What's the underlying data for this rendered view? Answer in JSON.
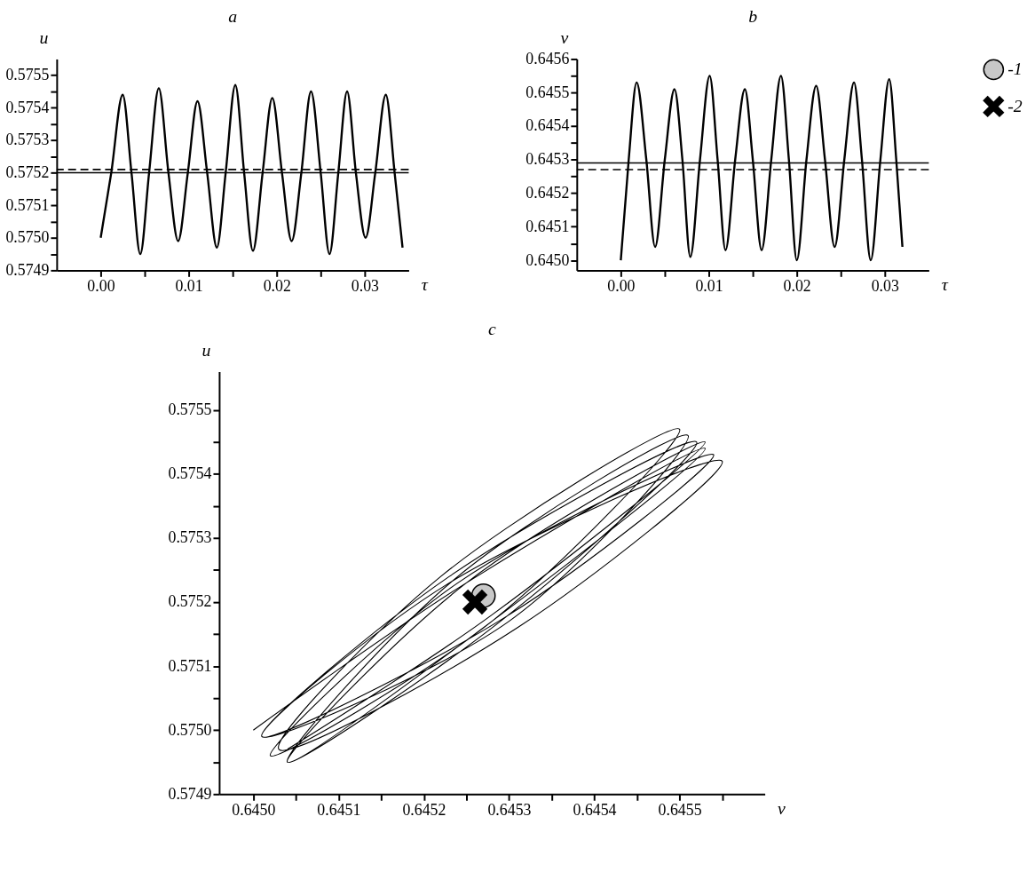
{
  "chart_data": [
    {
      "type": "line",
      "title": "a",
      "xlabel": "τ",
      "ylabel": "u",
      "grid": false,
      "xlim": [
        -0.005,
        0.035
      ],
      "xticks": [
        {
          "value": 0,
          "label": "0.00"
        },
        {
          "value": 0.005,
          "label": null
        },
        0.01,
        {
          "value": 0.015,
          "label": null
        },
        0.02,
        {
          "value": 0.025,
          "label": null
        },
        0.03
      ],
      "ylim": [
        0.5749,
        0.57555
      ],
      "yticks": [
        0.5749,
        {
          "value": 0.57495,
          "label": null
        },
        {
          "value": 0.575,
          "label": "0.5750"
        },
        {
          "value": 0.57505,
          "label": null
        },
        0.5751,
        {
          "value": 0.57515,
          "label": null
        },
        0.5752,
        {
          "value": 0.57525,
          "label": null
        },
        0.5753,
        {
          "value": 0.57535,
          "label": null
        },
        0.5754,
        {
          "value": 0.57545,
          "label": null
        },
        0.5755
      ],
      "ref_lines": [
        {
          "axis": "y",
          "value": 0.5752,
          "line_style": "solid"
        },
        {
          "axis": "y",
          "value": 0.57521,
          "line_style": "dashed"
        }
      ],
      "series": [
        {
          "color": "#000000",
          "marker": "none",
          "line_style": "solid",
          "x": [
            0,
            0.0012,
            0.0025,
            0.0035,
            0.0045,
            0.0055,
            0.0066,
            0.0077,
            0.0088,
            0.0099,
            0.011,
            0.0121,
            0.0132,
            0.0142,
            0.0153,
            0.0163,
            0.0173,
            0.0184,
            0.0195,
            0.0206,
            0.0217,
            0.0228,
            0.0239,
            0.025,
            0.026,
            0.027,
            0.028,
            0.029,
            0.0301,
            0.0312,
            0.0324,
            0.0334,
            0.0343
          ],
          "values": [
            0.575,
            0.5752,
            0.57544,
            0.5752,
            0.57495,
            0.5752,
            0.57546,
            0.5752,
            0.57499,
            0.5752,
            0.57542,
            0.5752,
            0.57497,
            0.5752,
            0.57547,
            0.5752,
            0.57496,
            0.5752,
            0.57543,
            0.5752,
            0.57499,
            0.5752,
            0.57545,
            0.5752,
            0.57495,
            0.5752,
            0.57545,
            0.5752,
            0.575,
            0.5752,
            0.57544,
            0.5752,
            0.57497
          ]
        }
      ]
    },
    {
      "type": "line",
      "title": "b",
      "xlabel": "τ",
      "ylabel": "v",
      "grid": false,
      "xlim": [
        -0.005,
        0.035
      ],
      "xticks": [
        {
          "value": 0,
          "label": "0.00"
        },
        {
          "value": 0.005,
          "label": null
        },
        0.01,
        {
          "value": 0.015,
          "label": null
        },
        0.02,
        {
          "value": 0.025,
          "label": null
        },
        0.03
      ],
      "ylim": [
        0.64497,
        0.6456
      ],
      "yticks": [
        {
          "value": 0.645,
          "label": "0.6450"
        },
        {
          "value": 0.64505,
          "label": null
        },
        0.6451,
        {
          "value": 0.64515,
          "label": null
        },
        0.6452,
        {
          "value": 0.64525,
          "label": null
        },
        0.6453,
        {
          "value": 0.64535,
          "label": null
        },
        0.6454,
        {
          "value": 0.64545,
          "label": null
        },
        0.6455,
        {
          "value": 0.64555,
          "label": null
        },
        0.6456
      ],
      "ref_lines": [
        {
          "axis": "y",
          "value": 0.64529,
          "line_style": "solid"
        },
        {
          "axis": "y",
          "value": 0.64527,
          "line_style": "dashed"
        }
      ],
      "series": [
        {
          "color": "#000000",
          "marker": "none",
          "line_style": "solid",
          "x": [
            0,
            0.0009,
            0.0018,
            0.0029,
            0.0039,
            0.005,
            0.0061,
            0.007,
            0.0079,
            0.009,
            0.0101,
            0.011,
            0.0119,
            0.013,
            0.0141,
            0.015,
            0.016,
            0.0171,
            0.0182,
            0.0191,
            0.02,
            0.0211,
            0.0222,
            0.0232,
            0.0243,
            0.0254,
            0.0265,
            0.0274,
            0.0284,
            0.0295,
            0.0305,
            0.0313,
            0.032
          ],
          "values": [
            0.645,
            0.6453,
            0.64553,
            0.6453,
            0.64504,
            0.6453,
            0.64551,
            0.6453,
            0.64501,
            0.6453,
            0.64555,
            0.6453,
            0.64503,
            0.6453,
            0.64551,
            0.6453,
            0.64503,
            0.6453,
            0.64555,
            0.6453,
            0.645,
            0.6453,
            0.64552,
            0.6453,
            0.64504,
            0.6453,
            0.64553,
            0.6453,
            0.645,
            0.6453,
            0.64554,
            0.6453,
            0.64504
          ]
        }
      ]
    },
    {
      "type": "line",
      "title": "c",
      "xlabel": "v",
      "ylabel": "u",
      "grid": false,
      "legend": "right",
      "xlim": [
        0.64496,
        0.6456
      ],
      "xticks": [
        {
          "value": 0.645,
          "label": "0.6450"
        },
        {
          "value": 0.64505,
          "label": null
        },
        0.6451,
        {
          "value": 0.64515,
          "label": null
        },
        0.6452,
        {
          "value": 0.64525,
          "label": null
        },
        0.6453,
        {
          "value": 0.64535,
          "label": null
        },
        0.6454,
        {
          "value": 0.64545,
          "label": null
        },
        0.6455,
        {
          "value": 0.64555,
          "label": null
        }
      ],
      "ylim": [
        0.5749,
        0.57556
      ],
      "yticks": [
        0.5749,
        {
          "value": 0.57495,
          "label": null
        },
        {
          "value": 0.575,
          "label": "0.5750"
        },
        {
          "value": 0.57505,
          "label": null
        },
        0.5751,
        {
          "value": 0.57515,
          "label": null
        },
        0.5752,
        {
          "value": 0.57525,
          "label": null
        },
        0.5753,
        {
          "value": 0.57535,
          "label": null
        },
        0.5754,
        {
          "value": 0.57545,
          "label": null
        },
        0.5755
      ],
      "series": [
        {
          "type": "line",
          "color": "#000000",
          "marker": "none",
          "line_style": "solid",
          "x": [
            0.645,
            0.64525,
            0.64553,
            0.64529,
            0.64504,
            0.64524,
            0.64551,
            0.6453,
            0.64501,
            0.64523,
            0.64555,
            0.64531,
            0.64503,
            0.64522,
            0.6455,
            0.64528,
            0.64502,
            0.64524,
            0.64554,
            0.6453,
            0.64501,
            0.64523,
            0.64552,
            0.64529,
            0.64504,
            0.64525,
            0.64553,
            0.64528,
            0.64504
          ],
          "values": [
            0.575,
            0.57523,
            0.57544,
            0.57518,
            0.57495,
            0.57524,
            0.57546,
            0.57517,
            0.57499,
            0.57523,
            0.57542,
            0.57516,
            0.57497,
            0.57524,
            0.57547,
            0.57517,
            0.57496,
            0.57523,
            0.57543,
            0.57518,
            0.57499,
            0.57524,
            0.57545,
            0.57517,
            0.57495,
            0.57523,
            0.57545,
            0.57518,
            0.57497
          ]
        },
        {
          "type": "scatter",
          "name": "-1",
          "color": "#c8c8c8",
          "marker": "circle",
          "x": [
            0.64527
          ],
          "values": [
            0.57521
          ]
        },
        {
          "type": "scatter",
          "name": "-2",
          "color": "#000000",
          "marker": "cross",
          "x": [
            0.64526
          ],
          "values": [
            0.5752
          ]
        }
      ]
    }
  ]
}
